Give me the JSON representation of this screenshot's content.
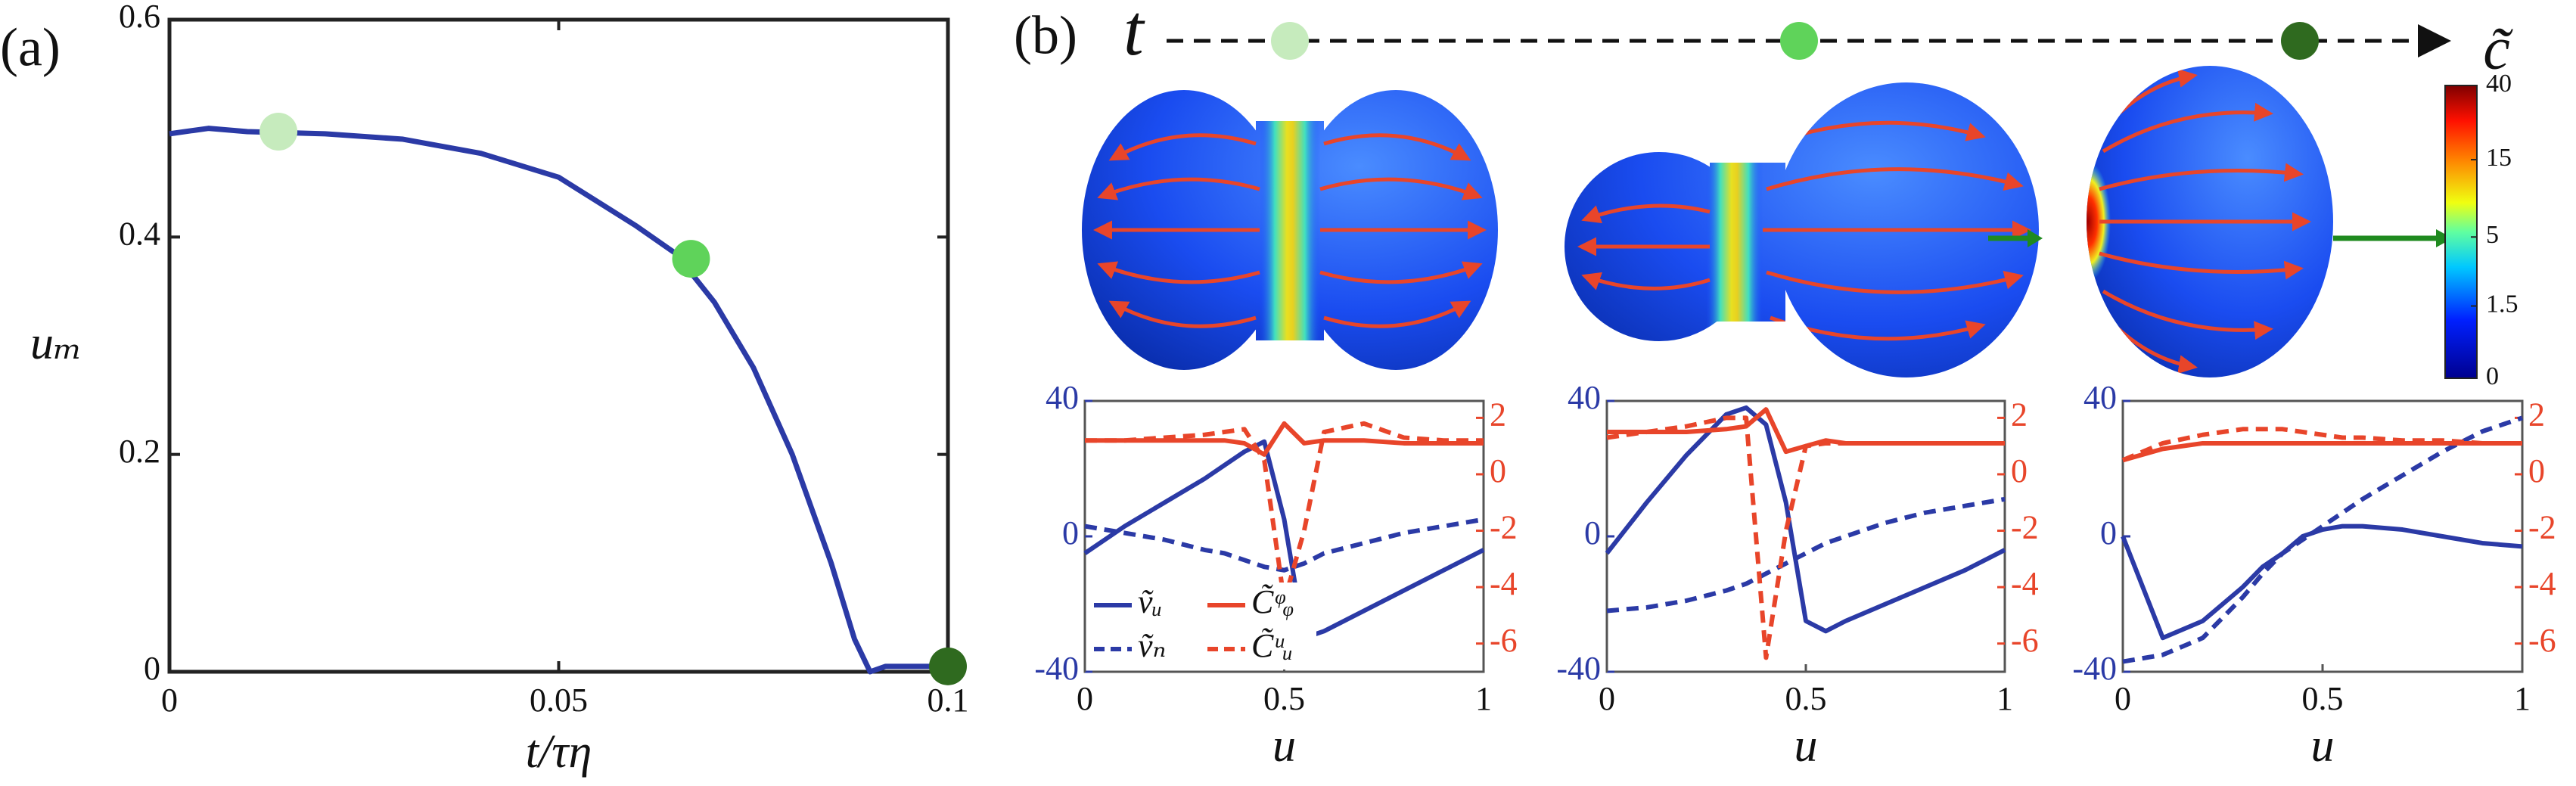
{
  "chart_data": [
    {
      "type": "line",
      "panel_label": "(a)",
      "xlabel": "t/τη",
      "ylabel": "uₘ",
      "xlim": [
        0,
        0.1
      ],
      "xticks": [
        0,
        0.05,
        0.1
      ],
      "ylim": [
        0,
        0.6
      ],
      "yticks": [
        0,
        0.2,
        0.4,
        0.6
      ],
      "color": "#2b3aa6",
      "x": [
        0,
        0.005,
        0.01,
        0.02,
        0.03,
        0.04,
        0.05,
        0.06,
        0.065,
        0.07,
        0.075,
        0.08,
        0.085,
        0.088,
        0.09,
        0.092,
        0.1
      ],
      "values": [
        0.495,
        0.5,
        0.497,
        0.495,
        0.49,
        0.477,
        0.455,
        0.41,
        0.385,
        0.34,
        0.28,
        0.2,
        0.1,
        0.03,
        0,
        0.005,
        0.005
      ],
      "markers": {
        "x": [
          0.014,
          0.067,
          0.1
        ],
        "values": [
          0.497,
          0.38,
          0.005
        ],
        "colors": [
          "#c6ebbd",
          "#5fd35a",
          "#2f6a1f"
        ]
      }
    },
    {
      "type": "colorbar",
      "panel_label": "(b)",
      "time_label": "t",
      "label": "c̃",
      "ylim": [
        0,
        40
      ],
      "yticks": [
        0,
        1.5,
        5,
        15,
        40
      ],
      "scale": "log1p"
    },
    {
      "type": "dual_line",
      "xlabel": "u",
      "xlim": [
        0,
        1
      ],
      "xticks": [
        0,
        0.5,
        1
      ],
      "ylim": [
        -40,
        40
      ],
      "yticks": [
        -40,
        0,
        40
      ],
      "y2lim": [
        -7,
        2.6
      ],
      "y2ticks": [
        -6,
        -4,
        -2,
        0,
        2
      ],
      "y_color": "#2b3aa6",
      "y2_color": "#e8452a",
      "legend": true,
      "x": [
        0,
        0.1,
        0.2,
        0.3,
        0.35,
        0.4,
        0.45,
        0.5,
        0.55,
        0.6,
        0.7,
        0.8,
        0.9,
        1
      ],
      "series": [
        {
          "name": "ṽᵤ",
          "color": "#2b3aa6",
          "dash": false,
          "values": [
            -5,
            3,
            10,
            17,
            21,
            25,
            28,
            5,
            -30,
            -28,
            -22,
            -16,
            -10,
            -4
          ]
        },
        {
          "name": "ṽₙ",
          "color": "#2b3aa6",
          "dash": true,
          "values": [
            3,
            1,
            -1,
            -4,
            -5,
            -7,
            -9,
            -10,
            -8,
            -5,
            -2,
            1,
            3,
            5
          ]
        },
        {
          "name": "C̃ᵠᵩ",
          "color": "#e8452a",
          "dash": false,
          "axis": "y2",
          "values": [
            1.2,
            1.2,
            1.2,
            1.2,
            1.2,
            1.1,
            0.7,
            1.8,
            1.1,
            1.2,
            1.2,
            1.1,
            1.1,
            1.1
          ]
        },
        {
          "name": "C̃ᵘᵤ",
          "color": "#e8452a",
          "dash": true,
          "axis": "y2",
          "values": [
            1.2,
            1.2,
            1.3,
            1.4,
            1.5,
            1.6,
            0.5,
            -4.5,
            -2,
            1.5,
            1.8,
            1.3,
            1.2,
            1.2
          ]
        }
      ]
    },
    {
      "type": "dual_line",
      "xlabel": "u",
      "xlim": [
        0,
        1
      ],
      "xticks": [
        0,
        0.5,
        1
      ],
      "ylim": [
        -40,
        40
      ],
      "yticks": [
        -40,
        0,
        40
      ],
      "y2lim": [
        -7,
        2.6
      ],
      "y2ticks": [
        -6,
        -4,
        -2,
        0,
        2
      ],
      "y_color": "#2b3aa6",
      "y2_color": "#e8452a",
      "legend": false,
      "x": [
        0,
        0.1,
        0.2,
        0.3,
        0.35,
        0.4,
        0.45,
        0.5,
        0.55,
        0.6,
        0.7,
        0.8,
        0.9,
        1
      ],
      "series": [
        {
          "color": "#2b3aa6",
          "dash": false,
          "values": [
            -5,
            10,
            24,
            36,
            38,
            33,
            10,
            -25,
            -28,
            -25,
            -20,
            -15,
            -10,
            -4
          ]
        },
        {
          "color": "#2b3aa6",
          "dash": true,
          "values": [
            -22,
            -21,
            -19,
            -16,
            -14,
            -11,
            -8,
            -5,
            -2,
            0,
            4,
            7,
            9,
            11
          ]
        },
        {
          "color": "#e8452a",
          "dash": false,
          "axis": "y2",
          "values": [
            1.5,
            1.5,
            1.5,
            1.6,
            1.7,
            2.3,
            0.8,
            1.0,
            1.2,
            1.1,
            1.1,
            1.1,
            1.1,
            1.1
          ]
        },
        {
          "color": "#e8452a",
          "dash": true,
          "axis": "y2",
          "values": [
            1.3,
            1.5,
            1.7,
            2.0,
            2.0,
            -6.5,
            -2,
            1.0,
            1.1,
            1.1,
            1.1,
            1.1,
            1.1,
            1.1
          ]
        }
      ]
    },
    {
      "type": "dual_line",
      "xlabel": "u",
      "xlim": [
        0,
        1
      ],
      "xticks": [
        0,
        0.5,
        1
      ],
      "ylim": [
        -40,
        40
      ],
      "yticks": [
        -40,
        0,
        40
      ],
      "y2lim": [
        -7,
        2.6
      ],
      "y2ticks": [
        -6,
        -4,
        -2,
        0,
        2
      ],
      "y_color": "#2b3aa6",
      "y2_color": "#e8452a",
      "legend": false,
      "x": [
        0,
        0.1,
        0.2,
        0.3,
        0.35,
        0.4,
        0.45,
        0.5,
        0.55,
        0.6,
        0.7,
        0.8,
        0.9,
        1
      ],
      "series": [
        {
          "color": "#2b3aa6",
          "dash": false,
          "values": [
            0,
            -30,
            -25,
            -15,
            -9,
            -5,
            0,
            2,
            3,
            3,
            2,
            0,
            -2,
            -3
          ]
        },
        {
          "color": "#2b3aa6",
          "dash": true,
          "values": [
            -37,
            -35,
            -30,
            -18,
            -11,
            -5,
            -1,
            3,
            7,
            11,
            18,
            25,
            31,
            35
          ]
        },
        {
          "color": "#e8452a",
          "dash": false,
          "axis": "y2",
          "values": [
            0.5,
            0.9,
            1.1,
            1.1,
            1.1,
            1.1,
            1.1,
            1.1,
            1.1,
            1.1,
            1.1,
            1.1,
            1.1,
            1.1
          ]
        },
        {
          "color": "#e8452a",
          "dash": true,
          "axis": "y2",
          "values": [
            0.5,
            1.1,
            1.4,
            1.6,
            1.6,
            1.6,
            1.5,
            1.4,
            1.3,
            1.3,
            1.2,
            1.2,
            1.1,
            1.1
          ]
        }
      ]
    }
  ]
}
